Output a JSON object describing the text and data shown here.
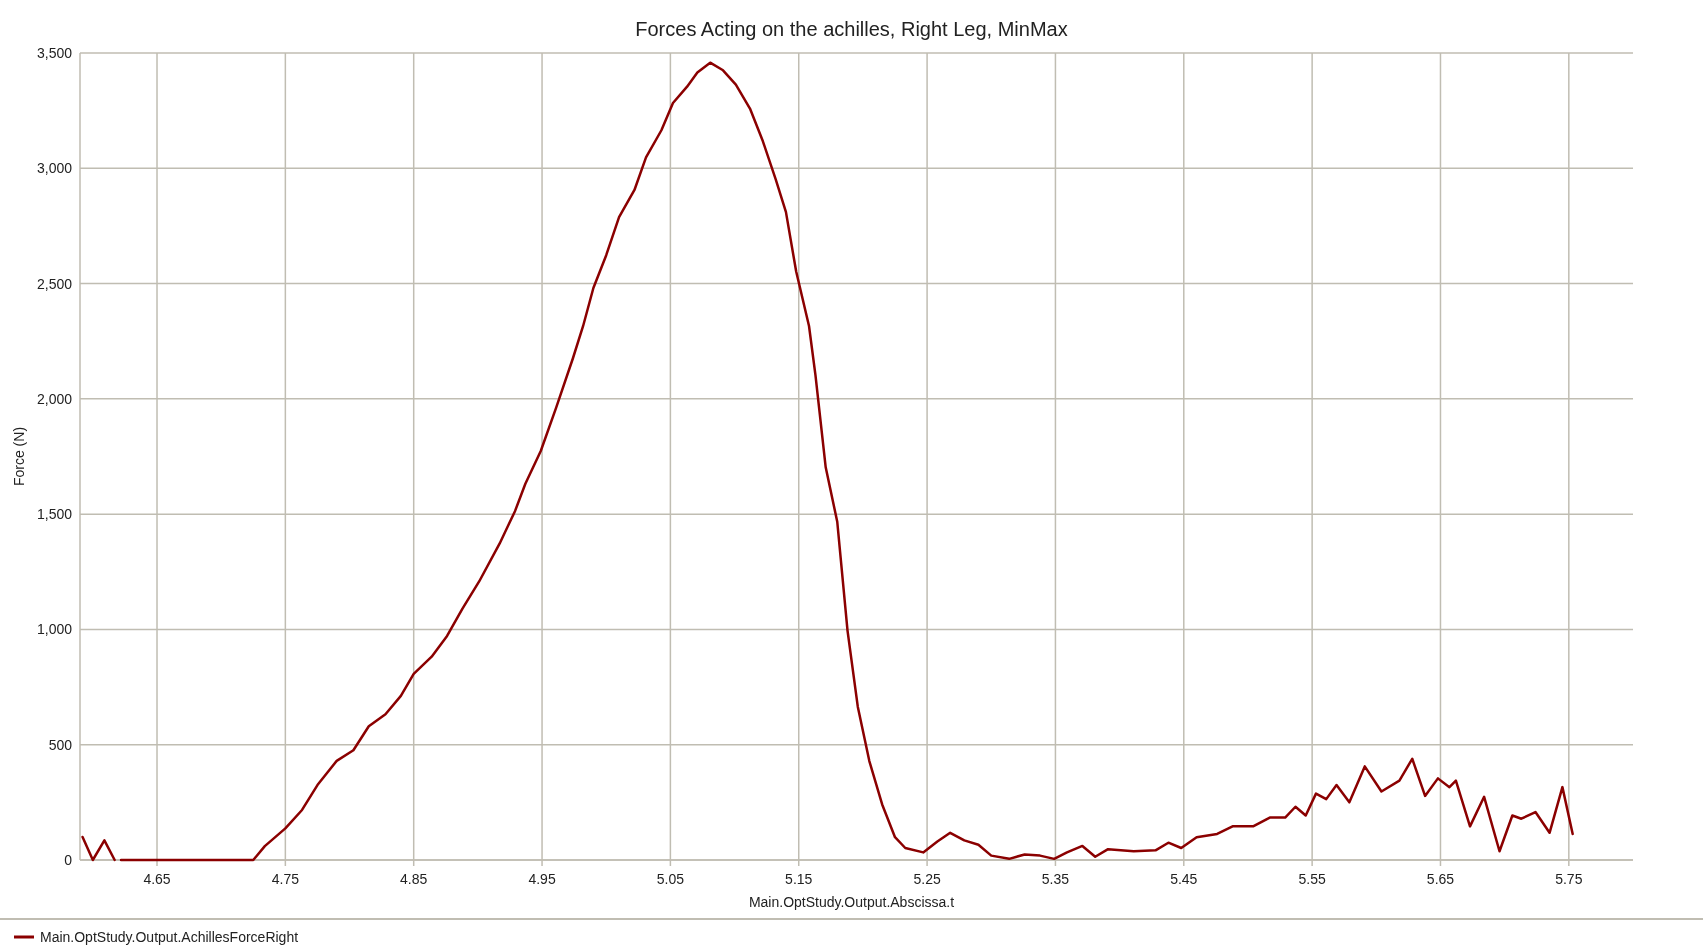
{
  "chart_data": {
    "type": "line",
    "title": "Forces Acting on the achilles, Right Leg, MinMax",
    "xlabel": "Main.OptStudy.Output.Abscissa.t",
    "ylabel": "Force (N)",
    "xlim": [
      4.59,
      5.8
    ],
    "xticks": [
      4.65,
      4.75,
      4.85,
      4.95,
      5.05,
      5.15,
      5.25,
      5.35,
      5.45,
      5.55,
      5.65,
      5.75
    ],
    "ylim": [
      0,
      3500
    ],
    "yticks": [
      {
        "value": 0,
        "label": "0"
      },
      {
        "value": 500,
        "label": "500"
      },
      {
        "value": 1000,
        "label": "1,000"
      },
      {
        "value": 1500,
        "label": "1,500"
      },
      {
        "value": 2000,
        "label": "2,000"
      },
      {
        "value": 2500,
        "label": "2,500"
      },
      {
        "value": 3000,
        "label": "3,000"
      },
      {
        "value": 3500,
        "label": "3,500"
      }
    ],
    "grid": true,
    "legend": "bottom left",
    "line_style": "solid",
    "marker": "none",
    "series": [
      {
        "name": "Main.OptStudy.Output.AchillesForceRight",
        "color": "#8b0000",
        "x": [
          4.592,
          4.6,
          4.609,
          4.617,
          4.619,
          4.622,
          4.725,
          4.734,
          4.75,
          4.763,
          4.775,
          4.79,
          4.803,
          4.815,
          4.828,
          4.84,
          4.85,
          4.864,
          4.876,
          4.888,
          4.901,
          4.917,
          4.929,
          4.937,
          4.949,
          4.961,
          4.974,
          4.982,
          4.99,
          5.0,
          5.01,
          5.022,
          5.031,
          5.043,
          5.052,
          5.063,
          5.071,
          5.081,
          5.091,
          5.101,
          5.112,
          5.122,
          5.132,
          5.14,
          5.148,
          5.158,
          5.163,
          5.171,
          5.18,
          5.188,
          5.196,
          5.205,
          5.215,
          5.225,
          5.233,
          5.247,
          5.258,
          5.268,
          5.279,
          5.29,
          5.3,
          5.314,
          5.326,
          5.338,
          5.349,
          5.359,
          5.371,
          5.381,
          5.391,
          5.411,
          5.428,
          5.438,
          5.448,
          5.46,
          5.476,
          5.488,
          5.504,
          5.517,
          5.529,
          5.537,
          5.545,
          5.553,
          5.561,
          5.569,
          5.579,
          5.591,
          5.604,
          5.618,
          5.628,
          5.638,
          5.648,
          5.657,
          5.662,
          5.673,
          5.684,
          5.696,
          5.706,
          5.713,
          5.724,
          5.735,
          5.745,
          5.753
        ],
        "values": [
          100,
          0,
          85,
          0,
          null,
          0,
          0,
          60,
          137,
          217,
          325,
          430,
          476,
          580,
          632,
          712,
          807,
          882,
          972,
          1090,
          1208,
          1373,
          1514,
          1632,
          1774,
          1962,
          2175,
          2316,
          2481,
          2623,
          2788,
          2906,
          3047,
          3165,
          3283,
          3354,
          3415,
          3458,
          3425,
          3363,
          3259,
          3118,
          2953,
          2811,
          2552,
          2316,
          2104,
          1703,
          1467,
          995,
          665,
          429,
          241,
          99,
          52,
          33,
          80,
          118,
          85,
          66,
          19,
          5,
          24,
          19,
          5,
          33,
          61,
          14,
          47,
          38,
          42,
          75,
          52,
          99,
          113,
          146,
          146,
          184,
          184,
          231,
          193,
          288,
          264,
          325,
          250,
          406,
          297,
          344,
          439,
          278,
          354,
          316,
          344,
          146,
          274,
          38,
          193,
          179,
          208,
          118,
          316,
          113
        ]
      }
    ]
  }
}
